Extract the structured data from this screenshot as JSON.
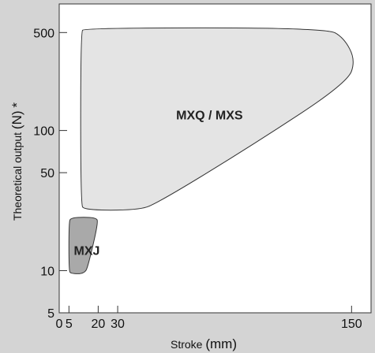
{
  "chart_data": {
    "type": "area",
    "title": "",
    "xlabel_main": "Stroke",
    "xlabel_unit": "(mm)",
    "ylabel_main": "Theoretical output",
    "ylabel_unit": "(N)",
    "ylabel_note": "*",
    "x_scale": "linear",
    "y_scale": "log",
    "xlim": [
      0,
      160
    ],
    "ylim": [
      5,
      800
    ],
    "x_ticks": [
      {
        "value": 0,
        "label": "0"
      },
      {
        "value": 5,
        "label": "5"
      },
      {
        "value": 20,
        "label": "20"
      },
      {
        "value": 30,
        "label": "30"
      },
      {
        "value": 150,
        "label": "150"
      }
    ],
    "y_ticks": [
      {
        "value": 5,
        "label": "5"
      },
      {
        "value": 10,
        "label": "10"
      },
      {
        "value": 50,
        "label": "50"
      },
      {
        "value": 100,
        "label": "100"
      },
      {
        "value": 500,
        "label": "500"
      }
    ],
    "regions": [
      {
        "name": "MXJ",
        "fill": "#a9a9a9",
        "label_at": {
          "x": 7.5,
          "y": 14
        },
        "outline": [
          [
            5,
            10
          ],
          [
            5,
            22
          ],
          [
            6,
            24
          ],
          [
            19,
            24
          ],
          [
            20,
            22
          ],
          [
            15,
            11
          ],
          [
            13,
            9.5
          ],
          [
            6,
            9.5
          ]
        ]
      },
      {
        "name": "MXQ / MXS",
        "fill": "#e4e4e4",
        "label_at": {
          "x": 60,
          "y": 130
        },
        "outline": [
          [
            11,
            500
          ],
          [
            13,
            540
          ],
          [
            137,
            540
          ],
          [
            146,
            460
          ],
          [
            152,
            320
          ],
          [
            148,
            220
          ],
          [
            100,
            80
          ],
          [
            50,
            30
          ],
          [
            40,
            27
          ],
          [
            13,
            27
          ],
          [
            11,
            30
          ]
        ]
      }
    ]
  }
}
